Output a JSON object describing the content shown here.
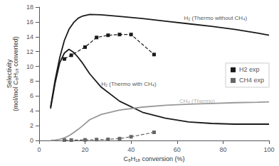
{
  "chart_data": {
    "type": "line",
    "xlabel": "C₈H₁₈ conversion (%)",
    "ylabel": "Selectivity\n(mol/mol C₈H₁₈ converted)",
    "xlim": [
      0,
      100
    ],
    "xticks": [
      0,
      20,
      40,
      60,
      80,
      100
    ],
    "ylim": [
      0,
      18
    ],
    "yticks": [
      0,
      2,
      4,
      6,
      8,
      10,
      12,
      14,
      16,
      18
    ],
    "grid": false,
    "legend": "right",
    "series": [
      {
        "color": "#1a1a1a",
        "line_style": "solid",
        "marker": "none",
        "x": [
          5,
          7,
          9,
          11,
          13,
          15,
          17,
          19,
          22,
          27,
          35,
          45,
          55,
          65,
          75,
          85,
          95,
          100
        ],
        "values": [
          4.5,
          8.2,
          11.2,
          13.5,
          15.0,
          15.9,
          16.5,
          16.8,
          17.0,
          16.95,
          16.75,
          16.45,
          16.1,
          15.75,
          15.4,
          15.0,
          14.5,
          14.2
        ]
      },
      {
        "color": "#1a1a1a",
        "line_style": "solid",
        "marker": "none",
        "x": [
          5,
          7,
          9,
          11,
          13,
          15,
          17,
          19,
          22,
          27,
          35,
          45,
          55,
          65,
          75,
          85,
          95,
          100
        ],
        "values": [
          4.3,
          7.8,
          10.5,
          11.8,
          12.3,
          11.9,
          11.2,
          10.4,
          9.0,
          7.2,
          5.3,
          3.8,
          3.0,
          2.5,
          2.3,
          2.2,
          2.2,
          2.2
        ]
      },
      {
        "color": "#999999",
        "line_style": "solid",
        "marker": "none",
        "x": [
          5,
          7,
          9,
          11,
          13,
          15,
          17,
          19,
          22,
          27,
          35,
          45,
          55,
          65,
          75,
          85,
          95,
          100
        ],
        "values": [
          0.02,
          0.06,
          0.15,
          0.35,
          0.65,
          1.05,
          1.5,
          2.0,
          2.8,
          3.5,
          4.1,
          4.5,
          4.75,
          4.9,
          5.0,
          5.1,
          5.15,
          5.2
        ]
      },
      {
        "name": "H2 exp",
        "color": "#1a1a1a",
        "line_style": "dashed",
        "marker": "square",
        "x": [
          11,
          14,
          20,
          25,
          30,
          35,
          40,
          50
        ],
        "values": [
          11.0,
          11.5,
          12.6,
          13.9,
          14.2,
          14.3,
          14.3,
          11.6
        ]
      },
      {
        "name": "CH4 exp",
        "color": "#666666",
        "line_style": "dashed",
        "marker": "square",
        "x": [
          11,
          14,
          20,
          25,
          30,
          35,
          40,
          50
        ],
        "values": [
          0.05,
          0.05,
          0.08,
          0.12,
          0.15,
          0.25,
          0.5,
          1.1
        ]
      }
    ],
    "annotations": [
      {
        "x": 63,
        "y": 16.5,
        "text": "H₂ (Thermo without CH₄)",
        "color": "#1a1a1a"
      },
      {
        "x": 27,
        "y": 7.6,
        "text": "H₂ (Thermo with CH₄)",
        "color": "#1a1a1a"
      },
      {
        "x": 61,
        "y": 5.3,
        "text": "CH₄ (Thermo)",
        "color": "#999999"
      }
    ]
  }
}
